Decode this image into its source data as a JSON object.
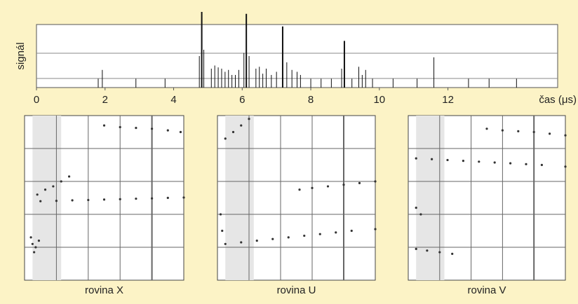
{
  "chart_data": [
    {
      "type": "impulse",
      "ylabel": "signál",
      "xlabel": "čas (μs)",
      "xlim": [
        0,
        15.2
      ],
      "xticks": [
        0,
        2,
        4,
        6,
        8,
        10,
        12
      ],
      "ylim": [
        0,
        1
      ],
      "color": "#111",
      "x": [
        1.8,
        1.92,
        2.9,
        3.75,
        4.75,
        4.82,
        4.88,
        5.1,
        5.2,
        5.3,
        5.4,
        5.5,
        5.6,
        5.7,
        5.8,
        5.9,
        6.05,
        6.12,
        6.2,
        6.4,
        6.5,
        6.6,
        6.7,
        6.85,
        7.0,
        7.18,
        7.3,
        7.45,
        7.6,
        7.7,
        8.0,
        8.3,
        8.6,
        8.9,
        8.98,
        9.2,
        9.4,
        9.5,
        9.6,
        9.8,
        10.4,
        11.1,
        11.59,
        12.6,
        13.2,
        14.0
      ],
      "values": [
        0.14,
        0.28,
        0.14,
        0.14,
        0.5,
        1.2,
        0.6,
        0.3,
        0.35,
        0.32,
        0.3,
        0.25,
        0.28,
        0.2,
        0.2,
        0.28,
        0.55,
        1.17,
        0.5,
        0.3,
        0.33,
        0.22,
        0.3,
        0.2,
        0.25,
        0.97,
        0.4,
        0.28,
        0.25,
        0.2,
        0.14,
        0.14,
        0.14,
        0.3,
        0.74,
        0.14,
        0.33,
        0.2,
        0.28,
        0.14,
        0.14,
        0.14,
        0.48,
        0.14,
        0.14,
        0.14
      ]
    },
    {
      "type": "scatter",
      "xlabel": "rovina X",
      "xlim": [
        0,
        100
      ],
      "ylim": [
        0,
        100
      ],
      "color": "#333",
      "x": [
        10,
        20,
        30,
        40,
        50,
        60,
        70,
        80,
        90,
        100,
        50,
        60,
        70,
        80,
        90,
        98,
        8,
        13,
        18,
        23,
        28,
        4,
        5,
        7,
        9,
        6
      ],
      "values": [
        48,
        48.2,
        48.5,
        48.7,
        49,
        49.2,
        49.5,
        49.7,
        50,
        50.2,
        94,
        93,
        92.5,
        92,
        91,
        90,
        52,
        55,
        57,
        60,
        63,
        26,
        22,
        20,
        24,
        17
      ]
    },
    {
      "type": "scatter",
      "xlabel": "rovina U",
      "xlim": [
        0,
        100
      ],
      "ylim": [
        0,
        100
      ],
      "color": "#333",
      "x": [
        5,
        15,
        25,
        35,
        45,
        55,
        65,
        75,
        85,
        100,
        52,
        60,
        70,
        80,
        90,
        100,
        5,
        10,
        15,
        20,
        2,
        3
      ],
      "values": [
        22,
        23,
        24,
        25,
        26,
        27,
        28,
        29,
        30,
        31,
        55,
        56,
        57,
        58,
        59,
        60,
        86,
        90,
        94,
        98,
        40,
        30
      ]
    },
    {
      "type": "scatter",
      "xlabel": "rovina V",
      "xlim": [
        0,
        100
      ],
      "ylim": [
        0,
        100
      ],
      "color": "#333",
      "x": [
        5,
        15,
        25,
        35,
        45,
        55,
        65,
        75,
        85,
        100,
        50,
        60,
        70,
        80,
        90,
        100,
        5,
        12,
        20,
        28,
        5,
        8
      ],
      "values": [
        74,
        73.5,
        73,
        72.5,
        72,
        71.5,
        71,
        70.5,
        70,
        69,
        92,
        91,
        90.5,
        90,
        89,
        88,
        19,
        18,
        17,
        16,
        44,
        40
      ]
    }
  ]
}
